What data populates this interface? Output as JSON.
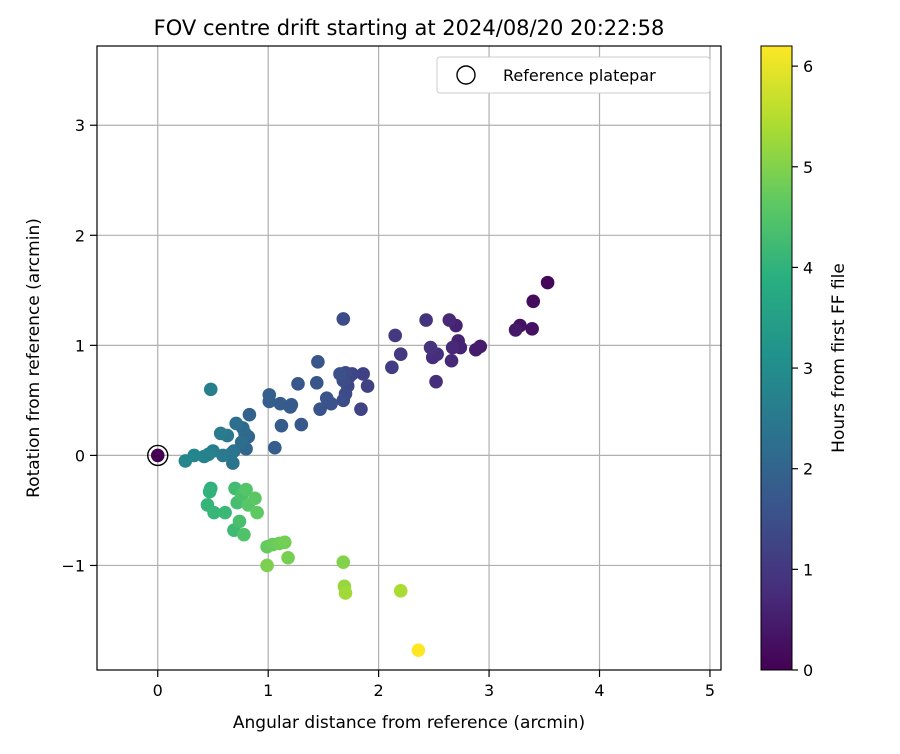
{
  "chart_data": {
    "type": "scatter",
    "title": "FOV centre drift starting at 2024/08/20 20:22:58",
    "xlabel": "Angular distance from reference (arcmin)",
    "ylabel": "Rotation from reference (arcmin)",
    "xlim": [
      -0.55,
      5.1
    ],
    "ylim": [
      -1.95,
      3.72
    ],
    "xticks": [
      0,
      1,
      2,
      3,
      4,
      5
    ],
    "yticks": [
      -1,
      0,
      1,
      2,
      3
    ],
    "grid": true,
    "legend": {
      "placement": "top-right",
      "entries": [
        "Reference platepar"
      ]
    },
    "reference_point": {
      "x": 0,
      "y": 0
    },
    "colorbar": {
      "label": "Hours from first FF file",
      "colormap": "viridis",
      "range": [
        0,
        6.2
      ],
      "ticks": [
        0,
        1,
        2,
        3,
        4,
        5,
        6
      ]
    },
    "series": [
      {
        "x": [
          0.0,
          3.53,
          3.4,
          3.39,
          3.28,
          3.24,
          2.92,
          2.88,
          2.74,
          2.72,
          2.7,
          2.67,
          2.66,
          2.64,
          2.53,
          2.52,
          2.49,
          2.47,
          2.43,
          2.2,
          2.15,
          2.12,
          1.9,
          1.86,
          1.84,
          1.76,
          1.73,
          1.72,
          1.7,
          1.7,
          1.68,
          1.68,
          1.68,
          1.65,
          1.57,
          1.53,
          1.47,
          1.45,
          1.44,
          1.3,
          1.27,
          1.21,
          1.2,
          1.12,
          1.11,
          1.06,
          1.01,
          1.01,
          0.83,
          0.82,
          0.8,
          0.79,
          0.77,
          0.76,
          0.71,
          0.69,
          0.68,
          0.67,
          0.63,
          0.59,
          0.57,
          0.5,
          0.48,
          0.46,
          0.42,
          0.33,
          0.25,
          0.48,
          0.47,
          0.45,
          0.51,
          0.61,
          0.69,
          0.7,
          0.72,
          0.74,
          0.76,
          0.78,
          0.8,
          0.82,
          0.88,
          0.9,
          0.99,
          1.04,
          1.1,
          1.15,
          1.18,
          0.99,
          1.68,
          1.69,
          1.7,
          2.2,
          2.36
        ],
        "y": [
          0.0,
          1.57,
          1.4,
          1.15,
          1.18,
          1.14,
          0.99,
          0.96,
          0.98,
          1.04,
          1.18,
          0.98,
          0.86,
          1.23,
          0.92,
          0.67,
          0.89,
          0.98,
          1.23,
          0.92,
          1.09,
          0.8,
          0.63,
          0.74,
          0.42,
          0.74,
          0.71,
          0.63,
          0.56,
          0.75,
          1.24,
          0.5,
          0.68,
          0.74,
          0.47,
          0.52,
          0.42,
          0.85,
          0.66,
          0.28,
          0.65,
          0.46,
          0.44,
          0.27,
          0.47,
          0.07,
          0.49,
          0.55,
          0.37,
          0.17,
          0.06,
          0.2,
          0.25,
          0.12,
          0.29,
          0.04,
          -0.07,
          0.02,
          0.18,
          0.0,
          0.2,
          0.04,
          0.6,
          0.01,
          -0.01,
          0.0,
          -0.05,
          -0.3,
          -0.33,
          -0.45,
          -0.52,
          -0.52,
          -0.68,
          -0.3,
          -0.43,
          -0.6,
          -0.36,
          -0.72,
          -0.31,
          -0.45,
          -0.39,
          -0.52,
          -0.83,
          -0.81,
          -0.8,
          -0.79,
          -0.93,
          -1.0,
          -0.97,
          -1.19,
          -1.25,
          -1.23,
          -1.77
        ],
        "hours": [
          0.0,
          0.1,
          0.2,
          0.3,
          0.3,
          0.4,
          0.5,
          0.5,
          0.6,
          0.6,
          0.6,
          0.7,
          0.7,
          0.7,
          0.8,
          0.8,
          0.8,
          0.9,
          0.9,
          1.0,
          1.0,
          1.1,
          1.2,
          1.2,
          1.25,
          1.3,
          1.3,
          1.35,
          1.4,
          1.4,
          1.4,
          1.45,
          1.45,
          1.5,
          1.55,
          1.6,
          1.6,
          1.65,
          1.65,
          1.7,
          1.7,
          1.75,
          1.75,
          1.8,
          1.8,
          1.85,
          1.85,
          1.9,
          1.95,
          2.0,
          2.05,
          2.1,
          2.15,
          2.2,
          2.25,
          2.3,
          2.35,
          2.4,
          2.45,
          2.5,
          2.55,
          2.6,
          2.65,
          2.7,
          2.75,
          2.8,
          2.85,
          3.95,
          4.0,
          4.05,
          4.1,
          4.15,
          4.2,
          4.25,
          4.3,
          4.35,
          4.4,
          4.45,
          4.5,
          4.55,
          4.6,
          4.65,
          4.7,
          4.75,
          4.8,
          4.85,
          4.9,
          4.95,
          5.0,
          5.2,
          5.3,
          5.4,
          6.2
        ]
      }
    ]
  }
}
